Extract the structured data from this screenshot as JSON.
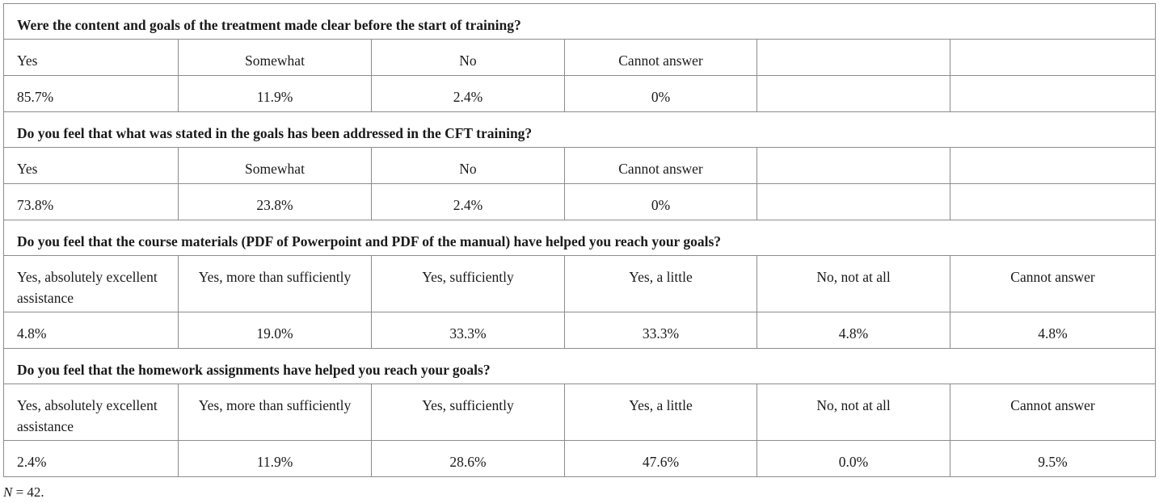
{
  "questions": [
    {
      "text": "Were the content and goals of the treatment made clear before the start of training?",
      "options": [
        "Yes",
        "Somewhat",
        "No",
        "Cannot answer",
        "",
        ""
      ],
      "values": [
        "85.7%",
        "11.9%",
        "2.4%",
        "0%",
        "",
        ""
      ]
    },
    {
      "text": "Do you feel that what was stated in the goals has been addressed in the CFT training?",
      "options": [
        "Yes",
        "Somewhat",
        "No",
        "Cannot answer",
        "",
        ""
      ],
      "values": [
        "73.8%",
        "23.8%",
        "2.4%",
        "0%",
        "",
        ""
      ]
    },
    {
      "text": "Do you feel that the course materials (PDF of Powerpoint and PDF of the manual) have helped you reach your goals?",
      "options": [
        "Yes, absolutely excellent assistance",
        "Yes, more than sufficiently",
        "Yes, sufficiently",
        "Yes, a little",
        "No, not at all",
        "Cannot answer"
      ],
      "values": [
        "4.8%",
        "19.0%",
        "33.3%",
        "33.3%",
        "4.8%",
        "4.8%"
      ]
    },
    {
      "text": "Do you feel that the homework assignments have helped you reach your goals?",
      "options": [
        "Yes, absolutely excellent assistance",
        "Yes, more than sufficiently",
        "Yes, sufficiently",
        "Yes, a little",
        "No, not at all",
        "Cannot answer"
      ],
      "values": [
        "2.4%",
        "11.9%",
        "28.6%",
        "47.6%",
        "0.0%",
        "9.5%"
      ]
    }
  ],
  "footnote": {
    "symbol": "N",
    "text": " = 42."
  }
}
